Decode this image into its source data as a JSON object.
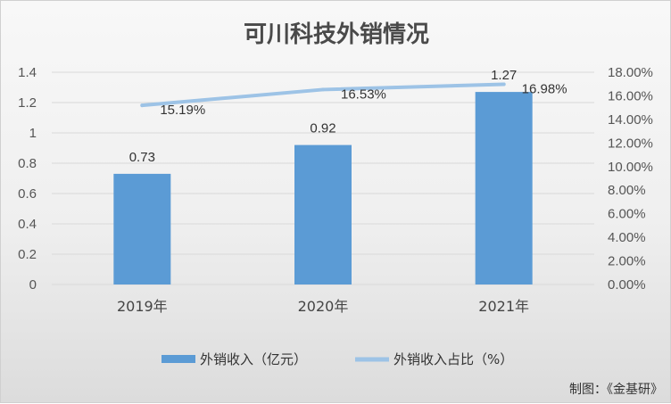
{
  "chart_data": {
    "type": "bar",
    "title": "可川科技外销情况",
    "categories": [
      "2019年",
      "2020年",
      "2021年"
    ],
    "series": [
      {
        "name": "外销收入（亿元）",
        "type": "bar",
        "axis": "left",
        "values": [
          0.73,
          0.92,
          1.27
        ],
        "labels": [
          "0.73",
          "0.92",
          "1.27"
        ],
        "color": "#5b9bd5"
      },
      {
        "name": "外销收入占比（%）",
        "type": "line",
        "axis": "right",
        "values": [
          15.19,
          16.53,
          16.98
        ],
        "labels": [
          "15.19%",
          "16.53%",
          "16.98%"
        ],
        "color": "#9dc3e6"
      }
    ],
    "y_left": {
      "min": 0,
      "max": 1.4,
      "ticks": [
        "0",
        "0.2",
        "0.4",
        "0.6",
        "0.8",
        "1",
        "1.2",
        "1.4"
      ]
    },
    "y_right": {
      "min": 0,
      "max": 18,
      "ticks": [
        "0.00%",
        "2.00%",
        "4.00%",
        "6.00%",
        "8.00%",
        "10.00%",
        "12.00%",
        "14.00%",
        "16.00%",
        "18.00%"
      ]
    },
    "grid": true,
    "legend_position": "bottom"
  },
  "credit": "制图：《金基研》"
}
